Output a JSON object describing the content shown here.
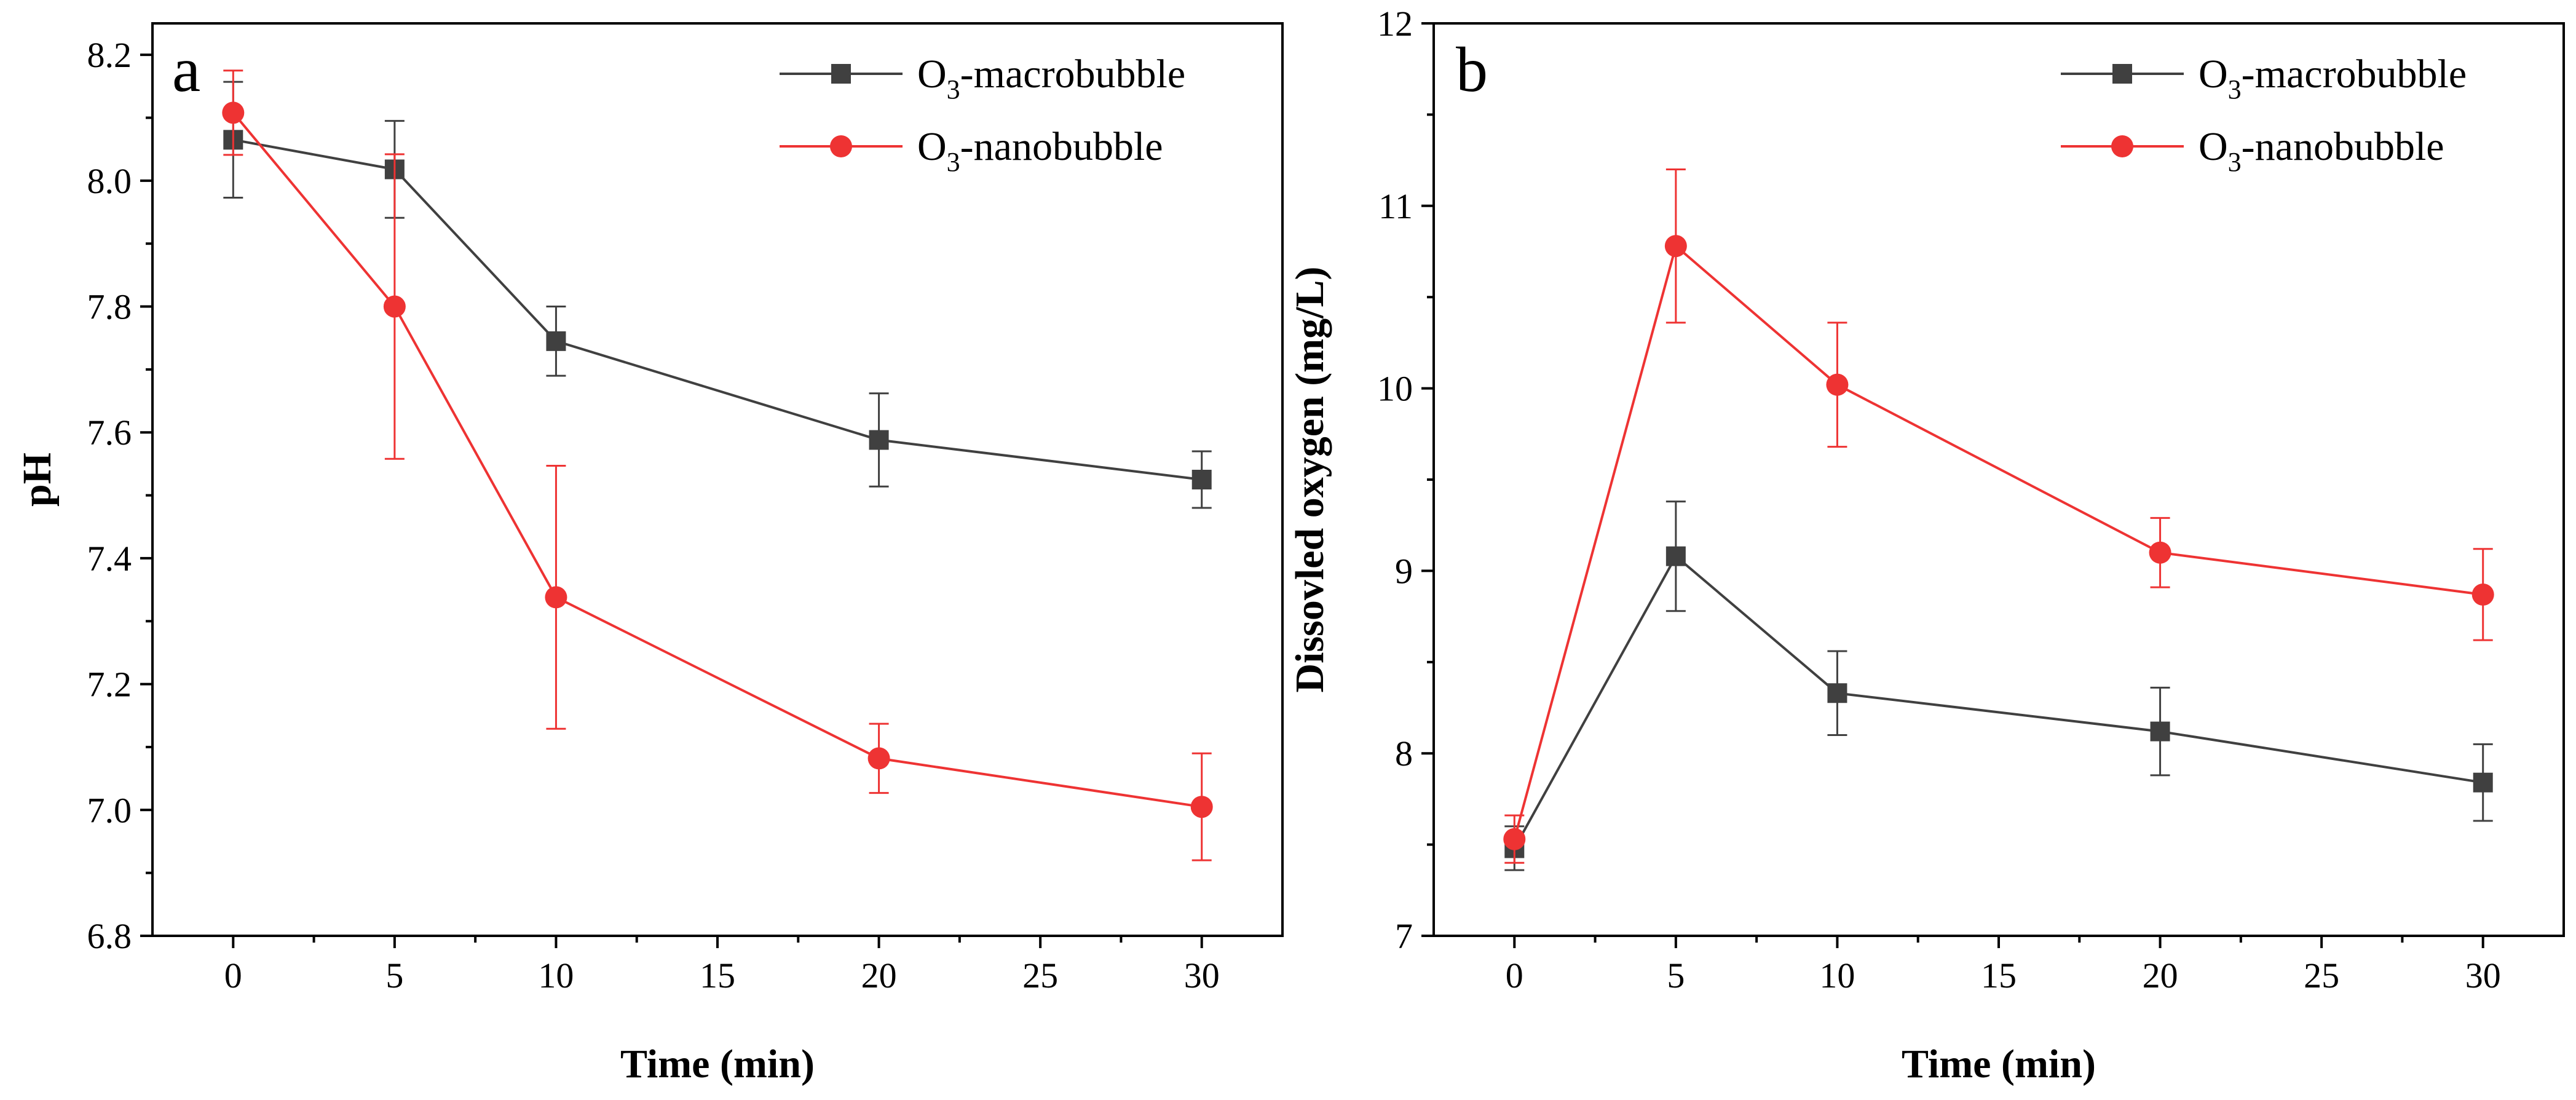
{
  "chart_data": [
    {
      "panel_label": "a",
      "type": "line",
      "title": "",
      "xlabel": "Time (min)",
      "ylabel": "pH",
      "xlim": [
        -2.5,
        32.5
      ],
      "ylim": [
        6.8,
        8.25
      ],
      "xticks": [
        0,
        5,
        10,
        15,
        20,
        25,
        30
      ],
      "xtick_labels": [
        "0",
        "5",
        "10",
        "15",
        "20",
        "25",
        "30"
      ],
      "yticks": [
        6.8,
        7.0,
        7.2,
        7.4,
        7.6,
        7.8,
        8.0,
        8.2
      ],
      "ytick_labels": [
        "6.8",
        "7.0",
        "7.2",
        "7.4",
        "7.6",
        "7.8",
        "8.0",
        "8.2"
      ],
      "legend_position": "top-right",
      "series": [
        {
          "name": "O3-macrobubble",
          "legend_main": "O",
          "legend_sub": "3",
          "legend_rest": "-macrobubble",
          "color": "#404040",
          "marker": "square",
          "x": [
            0,
            5,
            10,
            20,
            30
          ],
          "y": [
            8.065,
            8.018,
            7.745,
            7.588,
            7.525
          ],
          "err": [
            0.092,
            0.077,
            0.055,
            0.074,
            0.045
          ]
        },
        {
          "name": "O3-nanobubble",
          "legend_main": "O",
          "legend_sub": "3",
          "legend_rest": "-nanobubble",
          "color": "#ee3333",
          "marker": "circle",
          "x": [
            0,
            5,
            10,
            20,
            30
          ],
          "y": [
            8.108,
            7.8,
            7.338,
            7.082,
            7.005
          ],
          "err": [
            0.067,
            0.242,
            0.209,
            0.055,
            0.085
          ]
        }
      ]
    },
    {
      "panel_label": "b",
      "type": "line",
      "title": "",
      "xlabel": "Time (min)",
      "ylabel": "Dissovled oxygen (mg/L)",
      "xlim": [
        -2.5,
        32.5
      ],
      "ylim": [
        7,
        12
      ],
      "xticks": [
        0,
        5,
        10,
        15,
        20,
        25,
        30
      ],
      "xtick_labels": [
        "0",
        "5",
        "10",
        "15",
        "20",
        "25",
        "30"
      ],
      "yticks": [
        7,
        8,
        9,
        10,
        11,
        12
      ],
      "ytick_labels": [
        "7",
        "8",
        "9",
        "10",
        "11",
        "12"
      ],
      "legend_position": "top-right",
      "series": [
        {
          "name": "O3-macrobubble",
          "legend_main": "O",
          "legend_sub": "3",
          "legend_rest": "-macrobubble",
          "color": "#404040",
          "marker": "square",
          "x": [
            0,
            5,
            10,
            20,
            30
          ],
          "y": [
            7.48,
            9.08,
            8.33,
            8.12,
            7.84
          ],
          "err": [
            0.12,
            0.3,
            0.23,
            0.24,
            0.21
          ]
        },
        {
          "name": "O3-nanobubble",
          "legend_main": "O",
          "legend_sub": "3",
          "legend_rest": "-nanobubble",
          "color": "#ee3333",
          "marker": "circle",
          "x": [
            0,
            5,
            10,
            20,
            30
          ],
          "y": [
            7.53,
            10.78,
            10.02,
            9.1,
            8.87
          ],
          "err": [
            0.13,
            0.42,
            0.34,
            0.19,
            0.25
          ]
        }
      ]
    }
  ]
}
